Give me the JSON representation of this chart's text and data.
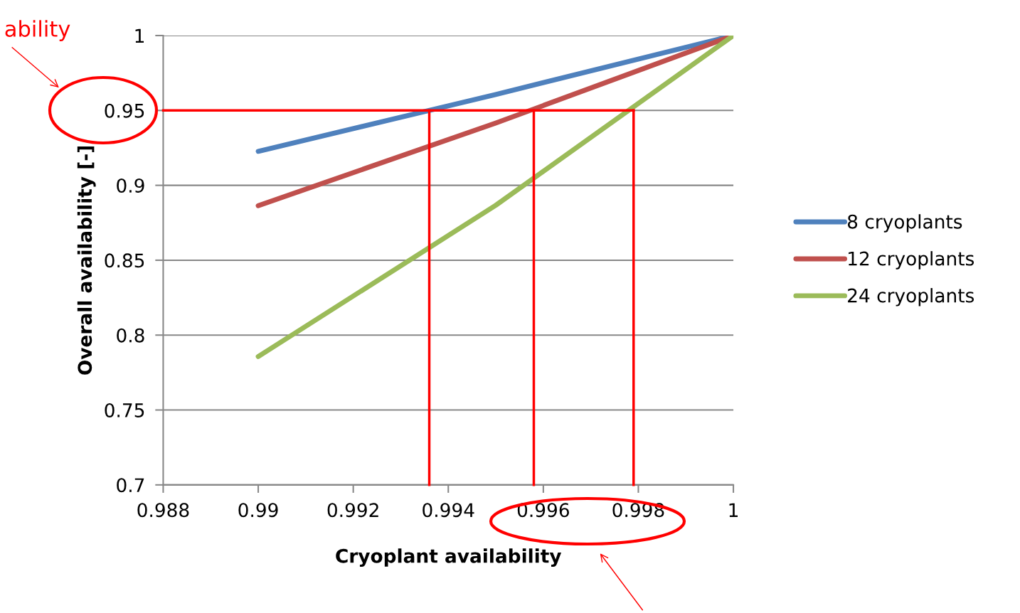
{
  "chart_data": {
    "type": "line",
    "xlabel": "Cryoplant availability",
    "ylabel": "Overall availability [-]",
    "x": [
      0.99,
      0.995,
      1
    ],
    "series": [
      {
        "name": "8 cryoplants",
        "color": "#4f81bd",
        "values": [
          0.9227,
          0.9607,
          1
        ]
      },
      {
        "name": "12 cryoplants",
        "color": "#c0504d",
        "values": [
          0.8864,
          0.9416,
          1
        ]
      },
      {
        "name": "24 cryoplants",
        "color": "#9bbb59",
        "values": [
          0.7857,
          0.8867,
          1
        ]
      }
    ],
    "xlim": [
      0.988,
      1
    ],
    "xticks": [
      0.988,
      0.99,
      0.992,
      0.994,
      0.996,
      0.998,
      1
    ],
    "ylim": [
      0.7,
      1
    ],
    "yticks": [
      0.7,
      0.75,
      0.8,
      0.85,
      0.9,
      0.95,
      1
    ],
    "grid": "y",
    "legend": "right",
    "marker": "none",
    "line_style": "solid",
    "ref_lines": [
      {
        "axis": "y",
        "value": 0.95,
        "color": "#ff0000"
      },
      {
        "axis": "x",
        "value": 0.9936,
        "color": "#ff0000"
      },
      {
        "axis": "x",
        "value": 0.9958,
        "color": "#ff0000"
      },
      {
        "axis": "x",
        "value": 0.9979,
        "color": "#ff0000"
      }
    ],
    "annotations": [
      "ability"
    ]
  }
}
